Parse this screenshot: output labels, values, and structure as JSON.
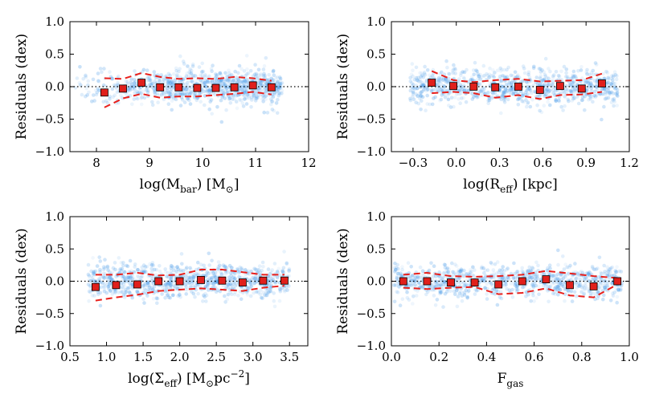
{
  "chart_data": [
    {
      "type": "scatter",
      "name": "panel-mbar",
      "xlabel": "log(M_bar) [M_sun]",
      "xlabel_parts": {
        "pre": "log(M",
        "sub": "bar",
        "post": ") [M",
        "sub2": "⊙",
        "post2": "]"
      },
      "ylabel": "Residuals (dex)",
      "xlim": [
        7.5,
        12
      ],
      "ylim": [
        -1.0,
        1.0
      ],
      "xticks": [
        8,
        9,
        10,
        11,
        12
      ],
      "xtick_labels": [
        "8",
        "9",
        "10",
        "11",
        "12"
      ],
      "yticks": [
        -1.0,
        -0.5,
        0.0,
        0.5,
        1.0
      ],
      "ytick_labels": [
        "−1.0",
        "−0.5",
        "0.0",
        "0.5",
        "1.0"
      ],
      "cloud_range": [
        7.6,
        11.5
      ],
      "binned": {
        "x": [
          8.15,
          8.5,
          8.85,
          9.2,
          9.55,
          9.9,
          10.25,
          10.6,
          10.95,
          11.3
        ],
        "y": [
          -0.09,
          -0.03,
          0.06,
          -0.01,
          -0.01,
          -0.02,
          -0.02,
          -0.01,
          0.02,
          -0.01
        ]
      },
      "scatter_band": {
        "x": [
          8.15,
          8.5,
          8.85,
          9.2,
          9.55,
          9.9,
          10.25,
          10.6,
          10.95,
          11.3
        ],
        "upper": [
          0.13,
          0.12,
          0.21,
          0.15,
          0.12,
          0.13,
          0.12,
          0.15,
          0.13,
          0.09
        ],
        "lower": [
          -0.32,
          -0.18,
          -0.11,
          -0.17,
          -0.15,
          -0.15,
          -0.13,
          -0.11,
          -0.08,
          -0.12
        ]
      }
    },
    {
      "type": "scatter",
      "name": "panel-reff",
      "xlabel": "log(R_eff) [kpc]",
      "xlabel_parts": {
        "pre": "log(R",
        "sub": "eff",
        "post": ") [kpc]",
        "sub2": "",
        "post2": ""
      },
      "ylabel": "Residuals (dex)",
      "xlim": [
        -0.45,
        1.2
      ],
      "ylim": [
        -1.0,
        1.0
      ],
      "xticks": [
        -0.3,
        0.0,
        0.3,
        0.6,
        0.9,
        1.2
      ],
      "xtick_labels": [
        "−0.3",
        "0.0",
        "0.3",
        "0.6",
        "0.9",
        "1.2"
      ],
      "yticks": [
        -1.0,
        -0.5,
        0.0,
        0.5,
        1.0
      ],
      "ytick_labels": [
        "−1.0",
        "−0.5",
        "0.0",
        "0.5",
        "1.0"
      ],
      "cloud_range": [
        -0.32,
        1.12
      ],
      "binned": {
        "x": [
          -0.17,
          -0.02,
          0.12,
          0.27,
          0.43,
          0.58,
          0.72,
          0.87,
          1.01
        ],
        "y": [
          0.06,
          0.01,
          0.0,
          -0.01,
          0.0,
          -0.05,
          0.01,
          -0.03,
          0.05
        ]
      },
      "scatter_band": {
        "x": [
          -0.17,
          -0.02,
          0.12,
          0.27,
          0.43,
          0.58,
          0.72,
          0.87,
          1.01
        ],
        "upper": [
          0.24,
          0.1,
          0.07,
          0.1,
          0.12,
          0.08,
          0.09,
          0.1,
          0.2
        ],
        "lower": [
          -0.1,
          -0.08,
          -0.1,
          -0.17,
          -0.13,
          -0.19,
          -0.13,
          -0.12,
          -0.08
        ]
      }
    },
    {
      "type": "scatter",
      "name": "panel-sigma",
      "xlabel": "log(Σ_eff) [M_sun pc^-2]",
      "xlabel_parts": {
        "pre": "log(Σ",
        "sub": "eff",
        "post": ") [M",
        "sub2": "⊙",
        "post2": "pc",
        "sup": "−2",
        "post3": "]"
      },
      "ylabel": "Residuals (dex)",
      "xlim": [
        0.5,
        3.75
      ],
      "ylim": [
        -1.0,
        1.0
      ],
      "xticks": [
        0.5,
        1.0,
        1.5,
        2.0,
        2.5,
        3.0,
        3.5
      ],
      "xtick_labels": [
        "0.5",
        "1.0",
        "1.5",
        "2.0",
        "2.5",
        "3.0",
        "3.5"
      ],
      "yticks": [
        -1.0,
        -0.5,
        0.0,
        0.5,
        1.0
      ],
      "ytick_labels": [
        "−1.0",
        "−0.5",
        "0.0",
        "0.5",
        "1.0"
      ],
      "cloud_range": [
        0.75,
        3.5
      ],
      "binned": {
        "x": [
          0.85,
          1.13,
          1.42,
          1.71,
          2.0,
          2.29,
          2.58,
          2.86,
          3.14,
          3.43
        ],
        "y": [
          -0.09,
          -0.06,
          -0.05,
          0.0,
          0.0,
          0.02,
          0.01,
          -0.02,
          0.01,
          0.01
        ]
      },
      "scatter_band": {
        "x": [
          0.85,
          1.13,
          1.42,
          1.71,
          2.0,
          2.29,
          2.58,
          2.86,
          3.14,
          3.43
        ],
        "upper": [
          0.1,
          0.1,
          0.13,
          0.09,
          0.1,
          0.18,
          0.18,
          0.14,
          0.1,
          0.1
        ],
        "lower": [
          -0.3,
          -0.25,
          -0.21,
          -0.15,
          -0.13,
          -0.11,
          -0.13,
          -0.15,
          -0.1,
          -0.07
        ]
      }
    },
    {
      "type": "scatter",
      "name": "panel-fgas",
      "xlabel": "F_gas",
      "xlabel_parts": {
        "pre": "F",
        "sub": "gas",
        "post": "",
        "sub2": "",
        "post2": ""
      },
      "ylabel": "Residuals (dex)",
      "xlim": [
        0.0,
        1.0
      ],
      "ylim": [
        -1.0,
        1.0
      ],
      "xticks": [
        0.0,
        0.2,
        0.4,
        0.6,
        0.8,
        1.0
      ],
      "xtick_labels": [
        "0.0",
        "0.2",
        "0.4",
        "0.6",
        "0.8",
        "1.0"
      ],
      "yticks": [
        -1.0,
        -0.5,
        0.0,
        0.5,
        1.0
      ],
      "ytick_labels": [
        "−1.0",
        "−0.5",
        "0.0",
        "0.5",
        "1.0"
      ],
      "cloud_range": [
        0.01,
        0.97
      ],
      "binned": {
        "x": [
          0.05,
          0.15,
          0.25,
          0.35,
          0.45,
          0.55,
          0.65,
          0.75,
          0.85,
          0.95
        ],
        "y": [
          0.0,
          0.0,
          -0.02,
          -0.02,
          -0.05,
          0.0,
          0.03,
          -0.06,
          -0.08,
          0.0
        ]
      },
      "scatter_band": {
        "x": [
          0.05,
          0.15,
          0.25,
          0.35,
          0.45,
          0.55,
          0.65,
          0.75,
          0.85,
          0.95
        ],
        "upper": [
          0.1,
          0.13,
          0.08,
          0.07,
          0.08,
          0.1,
          0.16,
          0.12,
          0.08,
          0.05
        ],
        "lower": [
          -0.1,
          -0.12,
          -0.1,
          -0.09,
          -0.2,
          -0.18,
          -0.11,
          -0.22,
          -0.25,
          -0.05
        ]
      }
    }
  ],
  "colors": {
    "cloud": "#4a9ae8",
    "binned_fill": "#e0201c",
    "binned_edge": "#000000",
    "band": "#e8201c",
    "zero_line": "#000000",
    "axes": "#000000"
  }
}
